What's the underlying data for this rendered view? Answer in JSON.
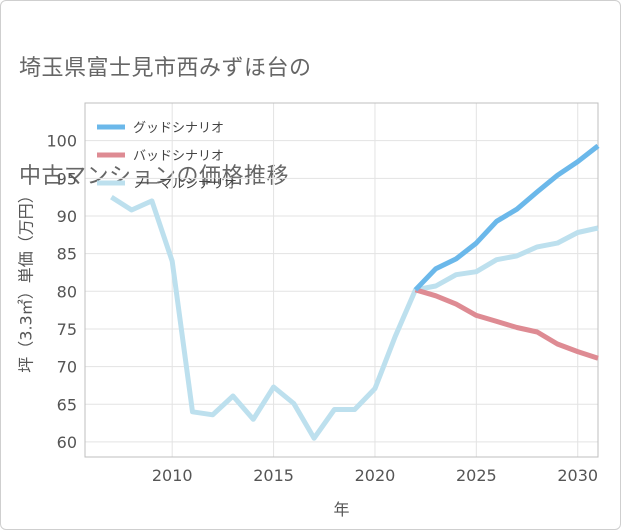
{
  "title_lines": [
    "埼玉県富士見市西みずほ台の",
    "中古マンションの価格推移"
  ],
  "chart_data": {
    "type": "line",
    "xlabel": "年",
    "ylabel": "坪（3.3㎡）単価（万円）",
    "xlim": [
      2005.7,
      2031
    ],
    "ylim": [
      58,
      105
    ],
    "x_ticks": [
      2010,
      2015,
      2020,
      2025,
      2030
    ],
    "y_ticks": [
      60,
      65,
      70,
      75,
      80,
      85,
      90,
      95,
      100
    ],
    "grid": true,
    "legend_position": "top-left",
    "series": [
      {
        "name": "グッドシナリオ",
        "color": "#6bb8ea",
        "x": [
          2022,
          2023,
          2024,
          2025,
          2026,
          2027,
          2028,
          2029,
          2030,
          2031
        ],
        "y": [
          80.2,
          83.0,
          84.3,
          86.4,
          89.3,
          90.9,
          93.2,
          95.4,
          97.2,
          99.3
        ]
      },
      {
        "name": "バッドシナリオ",
        "color": "#de8b93",
        "x": [
          2022,
          2023,
          2024,
          2025,
          2026,
          2027,
          2028,
          2029,
          2030,
          2031
        ],
        "y": [
          80.2,
          79.4,
          78.3,
          76.8,
          76.0,
          75.2,
          74.6,
          73.0,
          72.0,
          71.1
        ]
      },
      {
        "name": "ノーマルシナリオ",
        "color": "#bde0ee",
        "x": [
          2007,
          2008,
          2009,
          2010,
          2011,
          2012,
          2013,
          2014,
          2015,
          2016,
          2017,
          2018,
          2019,
          2020,
          2021,
          2022,
          2023,
          2024,
          2025,
          2026,
          2027,
          2028,
          2029,
          2030,
          2031
        ],
        "y": [
          92.5,
          90.8,
          92.0,
          84.0,
          64.0,
          63.6,
          66.1,
          63.0,
          67.3,
          65.1,
          60.5,
          64.3,
          64.3,
          67.1,
          74.0,
          80.2,
          80.7,
          82.2,
          82.6,
          84.2,
          84.7,
          85.9,
          86.4,
          87.8,
          88.4
        ]
      }
    ]
  }
}
